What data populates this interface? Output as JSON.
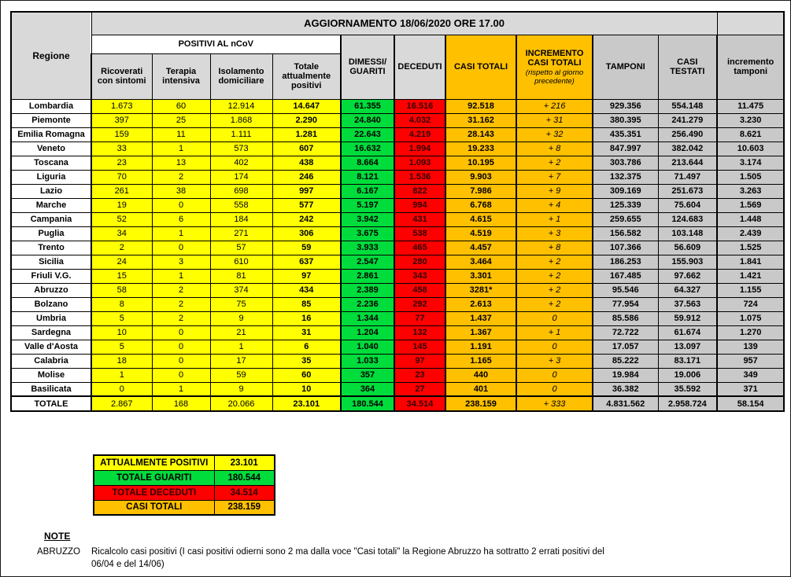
{
  "header": {
    "title": "AGGIORNAMENTO 18/06/2020 ORE 17.00",
    "regione": "Regione",
    "positivi_group": "POSITIVI AL nCoV",
    "ricoverati": "Ricoverati con sintomi",
    "terapia": "Terapia intensiva",
    "isolamento": "Isolamento domiciliare",
    "totale_positivi": "Totale attualmente positivi",
    "dimessi_guariti": "DIMESSI/ GUARITI",
    "deceduti": "DECEDUTI",
    "casi_totali": "CASI TOTALI",
    "incremento_casi": "INCREMENTO CASI TOTALI",
    "incremento_casi_sub": "(rispetto al giorno precedente)",
    "tamponi": "TAMPONI",
    "casi_testati": "CASI TESTATI",
    "incremento_tamponi": "incremento tamponi"
  },
  "rows": [
    {
      "name": "Lombardia",
      "ricoverati": "1.673",
      "terapia": "60",
      "isolamento": "12.914",
      "totale_positivi": "14.647",
      "dimessi_guariti": "61.355",
      "deceduti": "16.516",
      "casi_totali": "92.518",
      "incremento_casi": "+ 216",
      "tamponi": "929.356",
      "casi_testati": "554.148",
      "incremento_tamponi": "11.475"
    },
    {
      "name": "Piemonte",
      "ricoverati": "397",
      "terapia": "25",
      "isolamento": "1.868",
      "totale_positivi": "2.290",
      "dimessi_guariti": "24.840",
      "deceduti": "4.032",
      "casi_totali": "31.162",
      "incremento_casi": "+ 31",
      "tamponi": "380.395",
      "casi_testati": "241.279",
      "incremento_tamponi": "3.230"
    },
    {
      "name": "Emilia Romagna",
      "ricoverati": "159",
      "terapia": "11",
      "isolamento": "1.111",
      "totale_positivi": "1.281",
      "dimessi_guariti": "22.643",
      "deceduti": "4.219",
      "casi_totali": "28.143",
      "incremento_casi": "+ 32",
      "tamponi": "435.351",
      "casi_testati": "256.490",
      "incremento_tamponi": "8.621"
    },
    {
      "name": "Veneto",
      "ricoverati": "33",
      "terapia": "1",
      "isolamento": "573",
      "totale_positivi": "607",
      "dimessi_guariti": "16.632",
      "deceduti": "1.994",
      "casi_totali": "19.233",
      "incremento_casi": "+ 8",
      "tamponi": "847.997",
      "casi_testati": "382.042",
      "incremento_tamponi": "10.603"
    },
    {
      "name": "Toscana",
      "ricoverati": "23",
      "terapia": "13",
      "isolamento": "402",
      "totale_positivi": "438",
      "dimessi_guariti": "8.664",
      "deceduti": "1.093",
      "casi_totali": "10.195",
      "incremento_casi": "+ 2",
      "tamponi": "303.786",
      "casi_testati": "213.644",
      "incremento_tamponi": "3.174"
    },
    {
      "name": "Liguria",
      "ricoverati": "70",
      "terapia": "2",
      "isolamento": "174",
      "totale_positivi": "246",
      "dimessi_guariti": "8.121",
      "deceduti": "1.536",
      "casi_totali": "9.903",
      "incremento_casi": "+ 7",
      "tamponi": "132.375",
      "casi_testati": "71.497",
      "incremento_tamponi": "1.505"
    },
    {
      "name": "Lazio",
      "ricoverati": "261",
      "terapia": "38",
      "isolamento": "698",
      "totale_positivi": "997",
      "dimessi_guariti": "6.167",
      "deceduti": "822",
      "casi_totali": "7.986",
      "incremento_casi": "+ 9",
      "tamponi": "309.169",
      "casi_testati": "251.673",
      "incremento_tamponi": "3.263"
    },
    {
      "name": "Marche",
      "ricoverati": "19",
      "terapia": "0",
      "isolamento": "558",
      "totale_positivi": "577",
      "dimessi_guariti": "5.197",
      "deceduti": "994",
      "casi_totali": "6.768",
      "incremento_casi": "+ 4",
      "tamponi": "125.339",
      "casi_testati": "75.604",
      "incremento_tamponi": "1.569"
    },
    {
      "name": "Campania",
      "ricoverati": "52",
      "terapia": "6",
      "isolamento": "184",
      "totale_positivi": "242",
      "dimessi_guariti": "3.942",
      "deceduti": "431",
      "casi_totali": "4.615",
      "incremento_casi": "+ 1",
      "tamponi": "259.655",
      "casi_testati": "124.683",
      "incremento_tamponi": "1.448"
    },
    {
      "name": "Puglia",
      "ricoverati": "34",
      "terapia": "1",
      "isolamento": "271",
      "totale_positivi": "306",
      "dimessi_guariti": "3.675",
      "deceduti": "538",
      "casi_totali": "4.519",
      "incremento_casi": "+ 3",
      "tamponi": "156.582",
      "casi_testati": "103.148",
      "incremento_tamponi": "2.439"
    },
    {
      "name": "Trento",
      "ricoverati": "2",
      "terapia": "0",
      "isolamento": "57",
      "totale_positivi": "59",
      "dimessi_guariti": "3.933",
      "deceduti": "465",
      "casi_totali": "4.457",
      "incremento_casi": "+ 8",
      "tamponi": "107.366",
      "casi_testati": "56.609",
      "incremento_tamponi": "1.525"
    },
    {
      "name": "Sicilia",
      "ricoverati": "24",
      "terapia": "3",
      "isolamento": "610",
      "totale_positivi": "637",
      "dimessi_guariti": "2.547",
      "deceduti": "280",
      "casi_totali": "3.464",
      "incremento_casi": "+ 2",
      "tamponi": "186.253",
      "casi_testati": "155.903",
      "incremento_tamponi": "1.841"
    },
    {
      "name": "Friuli V.G.",
      "ricoverati": "15",
      "terapia": "1",
      "isolamento": "81",
      "totale_positivi": "97",
      "dimessi_guariti": "2.861",
      "deceduti": "343",
      "casi_totali": "3.301",
      "incremento_casi": "+ 2",
      "tamponi": "167.485",
      "casi_testati": "97.662",
      "incremento_tamponi": "1.421"
    },
    {
      "name": "Abruzzo",
      "ricoverati": "58",
      "terapia": "2",
      "isolamento": "374",
      "totale_positivi": "434",
      "dimessi_guariti": "2.389",
      "deceduti": "458",
      "casi_totali": "3281*",
      "incremento_casi": "+ 2",
      "tamponi": "95.546",
      "casi_testati": "64.327",
      "incremento_tamponi": "1.155"
    },
    {
      "name": "Bolzano",
      "ricoverati": "8",
      "terapia": "2",
      "isolamento": "75",
      "totale_positivi": "85",
      "dimessi_guariti": "2.236",
      "deceduti": "292",
      "casi_totali": "2.613",
      "incremento_casi": "+ 2",
      "tamponi": "77.954",
      "casi_testati": "37.563",
      "incremento_tamponi": "724"
    },
    {
      "name": "Umbria",
      "ricoverati": "5",
      "terapia": "2",
      "isolamento": "9",
      "totale_positivi": "16",
      "dimessi_guariti": "1.344",
      "deceduti": "77",
      "casi_totali": "1.437",
      "incremento_casi": "0",
      "tamponi": "85.586",
      "casi_testati": "59.912",
      "incremento_tamponi": "1.075"
    },
    {
      "name": "Sardegna",
      "ricoverati": "10",
      "terapia": "0",
      "isolamento": "21",
      "totale_positivi": "31",
      "dimessi_guariti": "1.204",
      "deceduti": "132",
      "casi_totali": "1.367",
      "incremento_casi": "+ 1",
      "tamponi": "72.722",
      "casi_testati": "61.674",
      "incremento_tamponi": "1.270"
    },
    {
      "name": "Valle d'Aosta",
      "ricoverati": "5",
      "terapia": "0",
      "isolamento": "1",
      "totale_positivi": "6",
      "dimessi_guariti": "1.040",
      "deceduti": "145",
      "casi_totali": "1.191",
      "incremento_casi": "0",
      "tamponi": "17.057",
      "casi_testati": "13.097",
      "incremento_tamponi": "139"
    },
    {
      "name": "Calabria",
      "ricoverati": "18",
      "terapia": "0",
      "isolamento": "17",
      "totale_positivi": "35",
      "dimessi_guariti": "1.033",
      "deceduti": "97",
      "casi_totali": "1.165",
      "incremento_casi": "+ 3",
      "tamponi": "85.222",
      "casi_testati": "83.171",
      "incremento_tamponi": "957"
    },
    {
      "name": "Molise",
      "ricoverati": "1",
      "terapia": "0",
      "isolamento": "59",
      "totale_positivi": "60",
      "dimessi_guariti": "357",
      "deceduti": "23",
      "casi_totali": "440",
      "incremento_casi": "0",
      "tamponi": "19.984",
      "casi_testati": "19.006",
      "incremento_tamponi": "349"
    },
    {
      "name": "Basilicata",
      "ricoverati": "0",
      "terapia": "1",
      "isolamento": "9",
      "totale_positivi": "10",
      "dimessi_guariti": "364",
      "deceduti": "27",
      "casi_totali": "401",
      "incremento_casi": "0",
      "tamponi": "36.382",
      "casi_testati": "35.592",
      "incremento_tamponi": "371"
    }
  ],
  "totale": {
    "name": "TOTALE",
    "ricoverati": "2.867",
    "terapia": "168",
    "isolamento": "20.066",
    "totale_positivi": "23.101",
    "dimessi_guariti": "180.544",
    "deceduti": "34.514",
    "casi_totali": "238.159",
    "incremento_casi": "+ 333",
    "tamponi": "4.831.562",
    "casi_testati": "2.958.724",
    "incremento_tamponi": "58.154"
  },
  "summary": [
    {
      "label": "ATTUALMENTE POSITIVI",
      "value": "23.101",
      "color": "#FFFF00"
    },
    {
      "label": "TOTALE GUARITI",
      "value": "180.544",
      "color": "#00DC3C"
    },
    {
      "label": "TOTALE DECEDUTI",
      "value": "34.514",
      "color": "#FF0000"
    },
    {
      "label": "CASI TOTALI",
      "value": "238.159",
      "color": "#FFC000"
    }
  ],
  "notes": {
    "heading": "NOTE",
    "region": "ABRUZZO",
    "line1": "Ricalcolo casi positivi (I casi positivi odierni sono 2 ma dalla voce \"Casi totali\" la Regione Abruzzo ha sottratto  2 errati positivi del",
    "line2": "06/04 e del 14/06)"
  },
  "colors": {
    "yellow": "#FFFF00",
    "green": "#00DC3C",
    "red": "#FF0000",
    "orange": "#FFC000",
    "header_gray": "#D9D9D9",
    "tamponi_gray": "#C9C9C9"
  }
}
